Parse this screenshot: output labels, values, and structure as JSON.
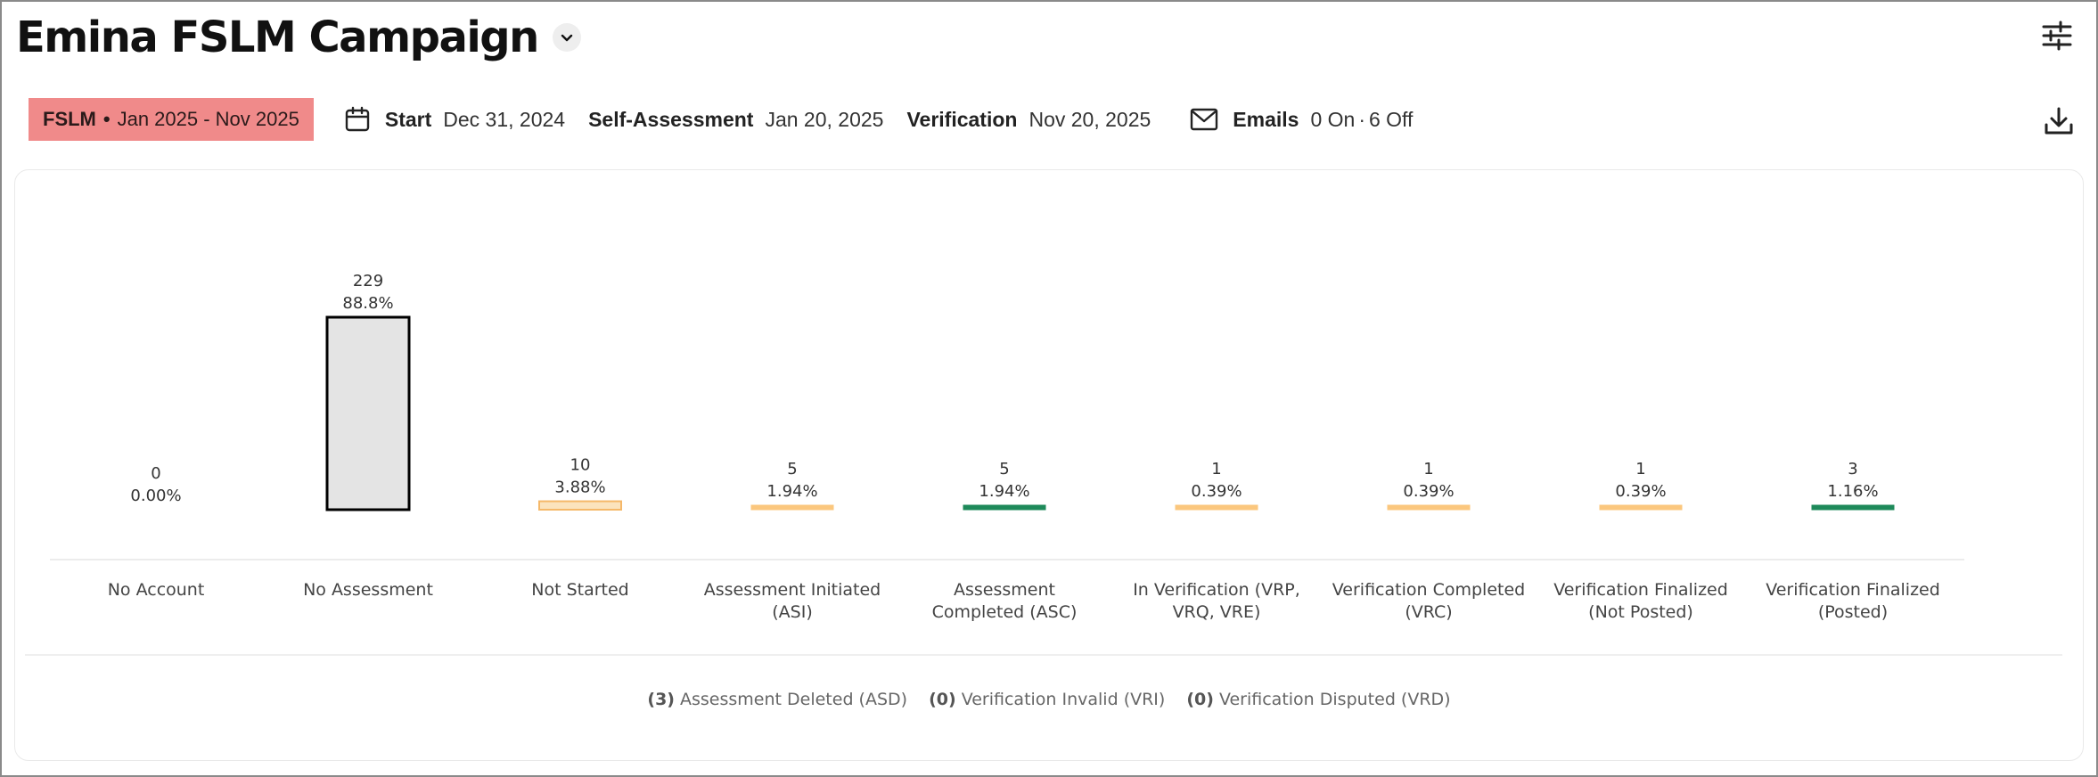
{
  "header": {
    "title": "Emina FSLM Campaign"
  },
  "info": {
    "badge_type": "FSLM",
    "badge_separator": "•",
    "badge_range": "Jan 2025 - Nov 2025",
    "badge_color": "#f08a8a",
    "start_label": "Start",
    "start_value": "Dec 31, 2024",
    "self_label": "Self-Assessment",
    "self_value": "Jan 20, 2025",
    "verification_label": "Verification",
    "verification_value": "Nov 20, 2025",
    "emails_label": "Emails",
    "emails_on": "0 On",
    "emails_sep": "·",
    "emails_off": "6 Off"
  },
  "icons": {
    "caret": "chevron-down-icon",
    "settings": "sliders-icon",
    "calendar": "calendar-icon",
    "mail": "mail-icon",
    "download": "download-icon"
  },
  "chart_data": {
    "type": "bar",
    "categories": [
      "No Account",
      "No Assessment",
      "Not Started",
      "Assessment Initiated (ASI)",
      "Assessment Completed (ASC)",
      "In Verification (VRP, VRQ, VRE)",
      "Verification Completed (VRC)",
      "Verification Finalized (Not Posted)",
      "Verification Finalized (Posted)"
    ],
    "category_lines": [
      [
        "No Account"
      ],
      [
        "No Assessment"
      ],
      [
        "Not Started"
      ],
      [
        "Assessment Initiated",
        "(ASI)"
      ],
      [
        "Assessment",
        "Completed (ASC)"
      ],
      [
        "In Verification (VRP,",
        "VRQ, VRE)"
      ],
      [
        "Verification Completed",
        "(VRC)"
      ],
      [
        "Verification Finalized",
        "(Not Posted)"
      ],
      [
        "Verification Finalized",
        "(Posted)"
      ]
    ],
    "values": [
      0,
      229,
      10,
      5,
      5,
      1,
      1,
      1,
      3
    ],
    "value_labels": [
      "0",
      "229",
      "10",
      "5",
      "5",
      "1",
      "1",
      "1",
      "3"
    ],
    "percent_labels": [
      "0.00%",
      "88.8%",
      "3.88%",
      "1.94%",
      "1.94%",
      "0.39%",
      "0.39%",
      "0.39%",
      "1.16%"
    ],
    "colors": [
      "#e4e4e4",
      "#e4e4e4",
      "#fbe3bd",
      "#fbc77e",
      "#1e8a5a",
      "#fbc77e",
      "#fbc77e",
      "#fbc77e",
      "#1e8a5a"
    ],
    "highlight_color": "#000000",
    "ylim": [
      0,
      229
    ],
    "grid": false,
    "legend": [
      {
        "count": "(3)",
        "label": "Assessment Deleted (ASD)"
      },
      {
        "count": "(0)",
        "label": "Verification Invalid (VRI)"
      },
      {
        "count": "(0)",
        "label": "Verification Disputed (VRD)"
      }
    ]
  }
}
